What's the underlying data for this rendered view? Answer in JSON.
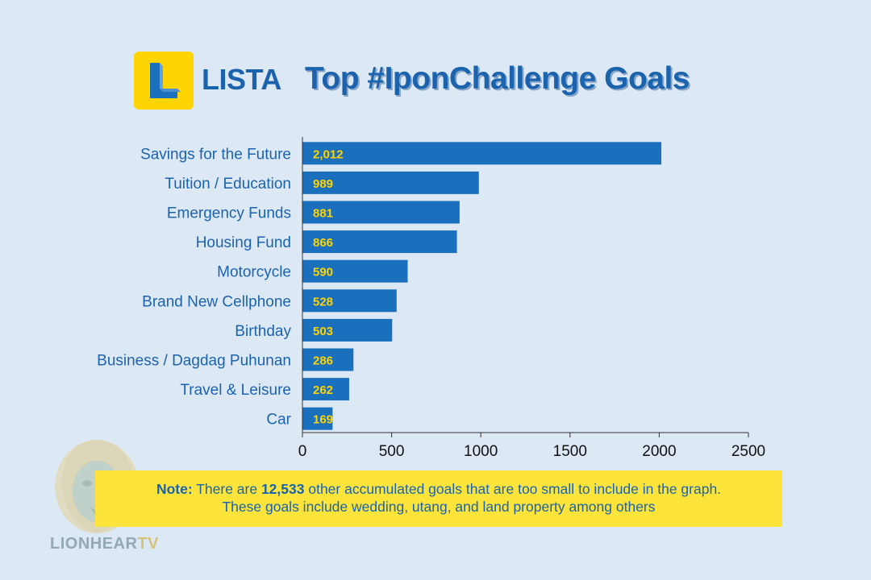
{
  "header": {
    "brand": "LISTA",
    "title": "Top #IponChallenge Goals"
  },
  "colors": {
    "bar": "#1b70bd",
    "value_label": "#ffd400",
    "label": "#1b63ad",
    "note_bg": "#fde43a"
  },
  "chart_data": {
    "type": "bar",
    "orientation": "horizontal",
    "categories": [
      "Savings for the Future",
      "Tuition / Education",
      "Emergency Funds",
      "Housing Fund",
      "Motorcycle",
      "Brand New Cellphone",
      "Birthday",
      "Business / Dagdag Puhunan",
      "Travel & Leisure",
      "Car"
    ],
    "values": [
      2012,
      989,
      881,
      866,
      590,
      528,
      503,
      286,
      262,
      169
    ],
    "value_labels": [
      "2,012",
      "989",
      "881",
      "866",
      "590",
      "528",
      "503",
      "286",
      "262",
      "169"
    ],
    "xlim": [
      0,
      2500
    ],
    "xticks": [
      0,
      500,
      1000,
      1500,
      2000,
      2500
    ],
    "title": "Top #IponChallenge Goals",
    "xlabel": "",
    "ylabel": "",
    "grid": false
  },
  "note": {
    "label": "Note:",
    "text_before": " There are ",
    "number": "12,533",
    "text_after": " other accumulated goals that are too small to include in the graph.",
    "line2": "These goals include wedding, utang, and land property among others"
  },
  "watermark": {
    "text_main": "LIONHEAR",
    "text_accent": "TV"
  }
}
